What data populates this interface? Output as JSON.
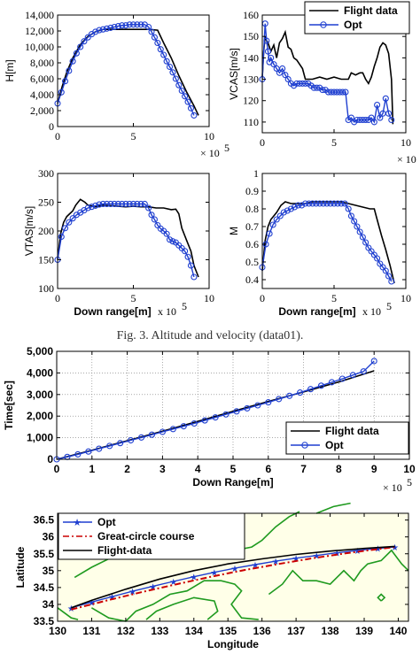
{
  "caption": "Fig. 3. Altitude and velocity (data01).",
  "colors": {
    "flight": "#000000",
    "opt": "#1f3fd0",
    "great_circle": "#cc0000",
    "land": "#1f9a1f",
    "map_bg": "#ffffe8"
  },
  "chart_data": [
    {
      "id": "altitude",
      "type": "line",
      "ylabel": "H[m]",
      "xlabel": "",
      "x_exponent": "× 10",
      "x_exp_power": "5",
      "xlim": [
        0,
        10
      ],
      "ylim": [
        0,
        14000
      ],
      "xticks": [
        "0",
        "5",
        "10"
      ],
      "yticks": [
        "0",
        "2,000",
        "4,000",
        "6,000",
        "8,000",
        "10,000",
        "12,000",
        "14,000"
      ],
      "ytick_values": [
        0,
        2000,
        4000,
        6000,
        8000,
        10000,
        12000,
        14000
      ],
      "series": [
        {
          "name": "Flight data",
          "marker": "none",
          "x": [
            0,
            0.3,
            0.6,
            1.0,
            1.5,
            2.0,
            2.5,
            3.0,
            4.0,
            5.0,
            6.0,
            6.6,
            7.0,
            7.5,
            8.0,
            8.5,
            9.0,
            9.3
          ],
          "y": [
            2900,
            5000,
            6800,
            8600,
            10300,
            11300,
            11900,
            12200,
            12200,
            12200,
            12200,
            12100,
            10500,
            8600,
            6400,
            4400,
            2600,
            1400
          ]
        },
        {
          "name": "Opt",
          "marker": "circle",
          "x": [
            0,
            0.25,
            0.5,
            0.75,
            1.0,
            1.25,
            1.5,
            1.75,
            2.0,
            2.25,
            2.5,
            2.75,
            3.0,
            3.25,
            3.5,
            3.75,
            4.0,
            4.25,
            4.5,
            4.75,
            5.0,
            5.25,
            5.5,
            5.75,
            6.0,
            6.2,
            6.4,
            6.6,
            6.8,
            7.0,
            7.2,
            7.4,
            7.6,
            7.8,
            8.0,
            8.2,
            8.4,
            8.6,
            8.8,
            9.0
          ],
          "y": [
            2900,
            4300,
            5700,
            7000,
            8200,
            9200,
            10000,
            10700,
            11200,
            11600,
            11900,
            12100,
            12200,
            12300,
            12400,
            12500,
            12600,
            12700,
            12700,
            12800,
            12800,
            12800,
            12800,
            12800,
            12500,
            11900,
            11200,
            10500,
            9700,
            9000,
            8200,
            7500,
            6800,
            6000,
            5200,
            4500,
            3800,
            3100,
            2300,
            1400
          ]
        }
      ]
    },
    {
      "id": "vcas",
      "type": "line",
      "ylabel": "VCAS[m/s]",
      "xlabel": "",
      "x_exponent": "× 10",
      "x_exp_power": "5",
      "xlim": [
        0,
        10
      ],
      "ylim": [
        105,
        160
      ],
      "xticks": [
        "0",
        "5",
        "10"
      ],
      "yticks": [
        "110",
        "120",
        "130",
        "140",
        "150",
        "160"
      ],
      "ytick_values": [
        110,
        120,
        130,
        140,
        150,
        160
      ],
      "legend": [
        "Flight data",
        "Opt"
      ],
      "series": [
        {
          "name": "Flight data",
          "marker": "none",
          "x": [
            0,
            0.1,
            0.2,
            0.3,
            0.4,
            0.5,
            0.6,
            0.8,
            1.0,
            1.2,
            1.4,
            1.6,
            1.8,
            2.0,
            2.2,
            2.4,
            2.6,
            2.8,
            3.0,
            3.5,
            4.0,
            4.5,
            5.0,
            5.5,
            6.0,
            6.2,
            6.5,
            6.8,
            7.0,
            7.2,
            7.4,
            7.6,
            7.8,
            8.0,
            8.2,
            8.4,
            8.6,
            8.8,
            9.0,
            9.1
          ],
          "y": [
            131,
            143,
            150,
            148,
            147,
            145,
            143,
            146,
            140,
            147,
            149,
            152,
            145,
            144,
            140,
            139,
            137,
            135,
            130,
            130,
            131,
            130,
            131,
            130,
            130,
            133,
            132,
            133,
            133,
            130,
            128,
            131,
            136,
            140,
            145,
            147,
            146,
            142,
            130,
            109
          ]
        },
        {
          "name": "Opt",
          "marker": "circle",
          "x": [
            0,
            0.2,
            0.3,
            0.4,
            0.5,
            0.6,
            0.8,
            1.0,
            1.2,
            1.4,
            1.6,
            1.8,
            2.0,
            2.2,
            2.4,
            2.6,
            2.8,
            3.0,
            3.2,
            3.4,
            3.6,
            3.8,
            4.0,
            4.2,
            4.4,
            4.6,
            4.8,
            5.0,
            5.2,
            5.4,
            5.6,
            5.8,
            6.0,
            6.2,
            6.4,
            6.6,
            6.8,
            7.0,
            7.2,
            7.4,
            7.6,
            7.8,
            8.0,
            8.2,
            8.4,
            8.6,
            8.8,
            9.0
          ],
          "y": [
            130,
            156,
            148,
            143,
            138,
            140,
            137,
            135,
            133,
            135,
            132,
            130,
            128,
            127,
            128,
            128,
            128,
            128,
            128,
            127,
            126,
            126,
            126,
            125,
            125,
            124,
            124,
            124,
            124,
            124,
            124,
            124,
            111,
            112,
            110,
            111,
            111,
            111,
            111,
            111,
            112,
            110,
            118,
            112,
            114,
            121,
            114,
            111
          ]
        }
      ]
    },
    {
      "id": "vtas",
      "type": "line",
      "ylabel": "VTAS[m/s]",
      "xlabel": "Down range[m]",
      "x_exponent": "x 10",
      "x_exp_power": "5",
      "xlim": [
        0,
        10
      ],
      "ylim": [
        100,
        300
      ],
      "xticks": [
        "0",
        "5",
        "10"
      ],
      "yticks": [
        "100",
        "150",
        "200",
        "250",
        "300"
      ],
      "ytick_values": [
        100,
        150,
        200,
        250,
        300
      ],
      "series": [
        {
          "name": "Flight data",
          "marker": "none",
          "x": [
            0,
            0.2,
            0.4,
            0.6,
            0.8,
            1.0,
            1.2,
            1.5,
            1.8,
            2.0,
            2.5,
            3.0,
            3.5,
            4.0,
            4.5,
            5.0,
            5.5,
            6.0,
            6.5,
            7.0,
            7.5,
            7.8,
            8.0,
            8.2,
            8.5,
            8.8,
            9.0,
            9.3
          ],
          "y": [
            150,
            195,
            215,
            225,
            230,
            235,
            245,
            255,
            250,
            245,
            242,
            245,
            244,
            243,
            242,
            243,
            242,
            242,
            240,
            240,
            237,
            238,
            230,
            205,
            185,
            165,
            140,
            120
          ]
        },
        {
          "name": "Opt",
          "marker": "circle",
          "x": [
            0,
            0.25,
            0.5,
            0.75,
            1.0,
            1.25,
            1.5,
            1.75,
            2.0,
            2.25,
            2.5,
            2.75,
            3.0,
            3.25,
            3.5,
            3.75,
            4.0,
            4.25,
            4.5,
            4.75,
            5.0,
            5.25,
            5.5,
            5.75,
            6.0,
            6.2,
            6.4,
            6.6,
            6.8,
            7.0,
            7.2,
            7.4,
            7.6,
            7.8,
            8.0,
            8.2,
            8.4,
            8.6,
            8.8,
            9.0
          ],
          "y": [
            150,
            190,
            205,
            215,
            222,
            228,
            232,
            236,
            240,
            242,
            244,
            246,
            247,
            247,
            247,
            247,
            247,
            247,
            247,
            247,
            247,
            247,
            247,
            247,
            240,
            228,
            220,
            210,
            204,
            200,
            195,
            185,
            182,
            180,
            175,
            170,
            165,
            155,
            140,
            120
          ]
        }
      ]
    },
    {
      "id": "mach",
      "type": "line",
      "ylabel": "M",
      "xlabel": "Down range[m]",
      "x_exponent": "x 10",
      "x_exp_power": "5",
      "xlim": [
        0,
        10
      ],
      "ylim": [
        0.35,
        1.0
      ],
      "xticks": [
        "0",
        "5",
        "10"
      ],
      "yticks": [
        "0.4",
        "0.5",
        "0.6",
        "0.7",
        "0.8",
        "0.9",
        "1"
      ],
      "ytick_values": [
        0.4,
        0.5,
        0.6,
        0.7,
        0.8,
        0.9,
        1.0
      ],
      "series": [
        {
          "name": "Flight data",
          "marker": "none",
          "x": [
            0,
            0.2,
            0.4,
            0.6,
            0.8,
            1.0,
            1.3,
            1.6,
            2.0,
            2.5,
            3.0,
            3.5,
            4.0,
            4.5,
            5.0,
            5.5,
            6.0,
            6.5,
            7.0,
            7.5,
            7.8,
            8.0,
            8.3,
            8.6,
            8.9,
            9.2
          ],
          "y": [
            0.45,
            0.62,
            0.7,
            0.74,
            0.76,
            0.78,
            0.82,
            0.84,
            0.83,
            0.83,
            0.83,
            0.84,
            0.84,
            0.84,
            0.84,
            0.84,
            0.83,
            0.82,
            0.81,
            0.8,
            0.8,
            0.74,
            0.65,
            0.57,
            0.48,
            0.38
          ]
        },
        {
          "name": "Opt",
          "marker": "circle",
          "x": [
            0,
            0.25,
            0.5,
            0.75,
            1.0,
            1.25,
            1.5,
            1.75,
            2.0,
            2.25,
            2.5,
            2.75,
            3.0,
            3.25,
            3.5,
            3.75,
            4.0,
            4.25,
            4.5,
            4.75,
            5.0,
            5.25,
            5.5,
            5.75,
            6.0,
            6.2,
            6.4,
            6.6,
            6.8,
            7.0,
            7.2,
            7.4,
            7.6,
            7.8,
            8.0,
            8.2,
            8.4,
            8.6,
            8.8,
            9.0
          ],
          "y": [
            0.47,
            0.6,
            0.66,
            0.71,
            0.74,
            0.76,
            0.78,
            0.79,
            0.8,
            0.81,
            0.82,
            0.82,
            0.83,
            0.83,
            0.83,
            0.83,
            0.83,
            0.83,
            0.83,
            0.83,
            0.83,
            0.83,
            0.83,
            0.83,
            0.8,
            0.76,
            0.73,
            0.7,
            0.67,
            0.64,
            0.61,
            0.58,
            0.56,
            0.54,
            0.52,
            0.49,
            0.47,
            0.45,
            0.42,
            0.39
          ]
        }
      ]
    },
    {
      "id": "time",
      "type": "line",
      "ylabel": "Time[sec]",
      "xlabel": "Down Range[m]",
      "x_exponent": "× 10",
      "x_exp_power": "5",
      "xlim": [
        0,
        10
      ],
      "ylim": [
        0,
        5000
      ],
      "grid": "dotted",
      "xticks": [
        "0",
        "1",
        "2",
        "3",
        "4",
        "5",
        "6",
        "7",
        "8",
        "9",
        "10"
      ],
      "yticks": [
        "0",
        "1,000",
        "2,000",
        "3,000",
        "4,000",
        "5,000"
      ],
      "ytick_values": [
        0,
        1000,
        2000,
        3000,
        4000,
        5000
      ],
      "legend": [
        "Flight data",
        "Opt"
      ],
      "series": [
        {
          "name": "Flight data",
          "marker": "none",
          "x": [
            0,
            1,
            2,
            3,
            4,
            5,
            6,
            7,
            8,
            9
          ],
          "y": [
            0,
            420,
            860,
            1300,
            1760,
            2220,
            2680,
            3120,
            3580,
            4100
          ]
        },
        {
          "name": "Opt",
          "marker": "circle",
          "x": [
            0,
            0.3,
            0.6,
            0.9,
            1.2,
            1.5,
            1.8,
            2.1,
            2.4,
            2.7,
            3.0,
            3.3,
            3.6,
            3.9,
            4.2,
            4.5,
            4.8,
            5.1,
            5.4,
            5.7,
            6.0,
            6.3,
            6.6,
            6.9,
            7.2,
            7.5,
            7.8,
            8.1,
            8.4,
            8.7,
            9.0
          ],
          "y": [
            0,
            110,
            230,
            360,
            490,
            620,
            750,
            880,
            1010,
            1140,
            1270,
            1400,
            1530,
            1660,
            1800,
            1940,
            2080,
            2220,
            2360,
            2500,
            2640,
            2790,
            2940,
            3090,
            3250,
            3410,
            3570,
            3730,
            3900,
            4070,
            4550
          ]
        }
      ]
    },
    {
      "id": "map",
      "type": "line",
      "ylabel": "Latitude",
      "xlabel": "Longitude",
      "xlim": [
        130,
        140.3
      ],
      "ylim": [
        33.5,
        36.7
      ],
      "xticks": [
        "130",
        "131",
        "132",
        "133",
        "134",
        "135",
        "136",
        "137",
        "138",
        "139",
        "140"
      ],
      "yticks": [
        "33.5",
        "34",
        "34.5",
        "35",
        "35.5",
        "36",
        "36.5"
      ],
      "ytick_values": [
        33.5,
        34,
        34.5,
        35,
        35.5,
        36,
        36.5
      ],
      "xtick_values": [
        130,
        131,
        132,
        133,
        134,
        135,
        136,
        137,
        138,
        139,
        140
      ],
      "legend": [
        "Opt",
        "Great-circle course",
        "Flight-data"
      ],
      "series": [
        {
          "name": "Opt",
          "marker": "star",
          "x": [
            130.4,
            131.0,
            131.6,
            132.2,
            132.8,
            133.4,
            134.0,
            134.6,
            135.2,
            135.8,
            136.4,
            137.0,
            137.6,
            138.2,
            138.8,
            139.4,
            139.9
          ],
          "y": [
            33.9,
            34.07,
            34.23,
            34.39,
            34.54,
            34.68,
            34.82,
            34.95,
            35.07,
            35.18,
            35.28,
            35.37,
            35.45,
            35.53,
            35.6,
            35.66,
            35.7
          ]
        },
        {
          "name": "Great-circle course",
          "marker": "none",
          "x": [
            130.4,
            131.5,
            132.5,
            133.5,
            134.5,
            135.5,
            136.5,
            137.5,
            138.5,
            139.5,
            139.9
          ],
          "y": [
            33.85,
            34.13,
            34.37,
            34.6,
            34.82,
            35.02,
            35.2,
            35.37,
            35.52,
            35.65,
            35.7
          ]
        },
        {
          "name": "Flight-data",
          "marker": "none",
          "x": [
            130.4,
            131.0,
            132.0,
            133.0,
            134.0,
            135.0,
            136.0,
            137.0,
            138.0,
            139.0,
            139.9
          ],
          "y": [
            33.9,
            34.12,
            34.45,
            34.75,
            35.0,
            35.2,
            35.35,
            35.48,
            35.58,
            35.66,
            35.72
          ]
        }
      ]
    }
  ]
}
